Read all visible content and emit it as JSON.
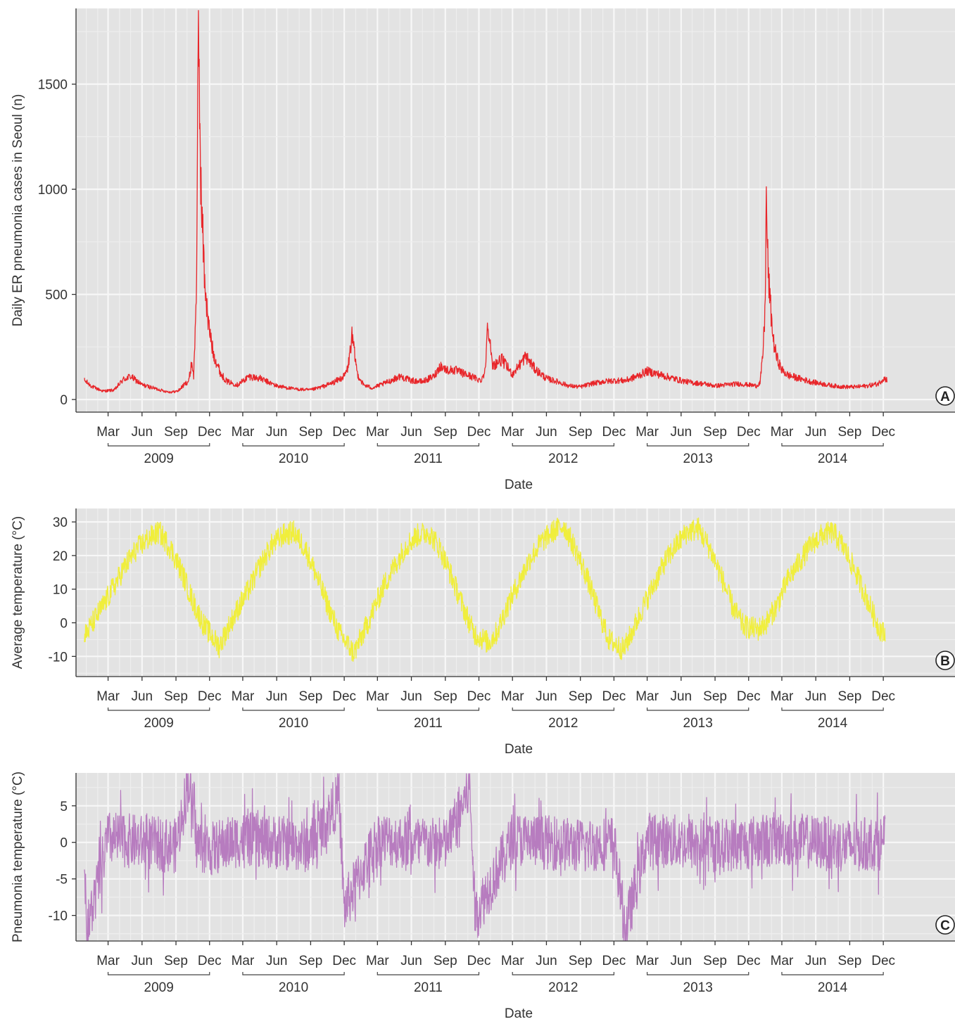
{
  "chart_data": [
    {
      "type": "line",
      "panel_label": "A",
      "title": "",
      "xlabel": "Date",
      "ylabel": "Daily ER pneumonia cases in Seoul (n)",
      "x_range": [
        "2009-01-01",
        "2015-01-01"
      ],
      "ylim": [
        -60,
        1860
      ],
      "y_ticks": [
        0,
        500,
        1000,
        1500
      ],
      "month_ticks": [
        "Mar",
        "Jun",
        "Sep",
        "Dec"
      ],
      "years": [
        "2009",
        "2010",
        "2011",
        "2012",
        "2013",
        "2014"
      ],
      "grid": true,
      "legend": "none",
      "line_color": "#e8262a",
      "series": [
        {
          "x": [
            "2009-01-10",
            "2009-02-01",
            "2009-03-01",
            "2009-04-01",
            "2009-04-25",
            "2009-05-15",
            "2009-06-15",
            "2009-07-15",
            "2009-08-15",
            "2009-09-01",
            "2009-09-20",
            "2009-10-10",
            "2009-10-20",
            "2009-10-28",
            "2009-11-02",
            "2009-11-06",
            "2009-11-10",
            "2009-11-15",
            "2009-11-22",
            "2009-12-01",
            "2009-12-10",
            "2009-12-25",
            "2010-01-15",
            "2010-02-01",
            "2010-03-01",
            "2010-04-01",
            "2010-05-01",
            "2010-06-15",
            "2010-08-01",
            "2010-09-15",
            "2010-10-15",
            "2010-11-15",
            "2010-12-15",
            "2010-12-25",
            "2011-01-05",
            "2011-01-20",
            "2011-02-05",
            "2011-03-01",
            "2011-04-01",
            "2011-05-15",
            "2011-06-15",
            "2011-07-15",
            "2011-08-15",
            "2011-09-01",
            "2011-09-20",
            "2011-10-10",
            "2011-11-01",
            "2011-12-01",
            "2011-12-20",
            "2012-01-01",
            "2012-01-08",
            "2012-01-20",
            "2012-02-15",
            "2012-03-15",
            "2012-04-01",
            "2012-04-20",
            "2012-05-15",
            "2012-06-15",
            "2012-07-15",
            "2012-08-15",
            "2012-09-15",
            "2012-10-15",
            "2012-11-15",
            "2012-12-15",
            "2013-01-15",
            "2013-02-15",
            "2013-03-15",
            "2013-04-15",
            "2013-05-15",
            "2013-06-15",
            "2013-07-15",
            "2013-08-15",
            "2013-09-15",
            "2013-10-15",
            "2013-11-15",
            "2013-12-15",
            "2014-01-05",
            "2014-01-15",
            "2014-01-22",
            "2014-01-28",
            "2014-02-01",
            "2014-02-06",
            "2014-02-12",
            "2014-02-20",
            "2014-03-01",
            "2014-03-15",
            "2014-04-01",
            "2014-05-01",
            "2014-06-01",
            "2014-07-01",
            "2014-08-01",
            "2014-09-01",
            "2014-10-01",
            "2014-11-01",
            "2014-12-01",
            "2014-12-15",
            "2014-12-25"
          ],
          "values": [
            90,
            60,
            40,
            45,
            95,
            110,
            70,
            55,
            40,
            35,
            40,
            75,
            90,
            180,
            110,
            320,
            600,
            1780,
            980,
            600,
            380,
            220,
            120,
            85,
            70,
            110,
            100,
            65,
            50,
            45,
            60,
            80,
            110,
            150,
            300,
            120,
            70,
            55,
            75,
            110,
            90,
            85,
            110,
            160,
            140,
            140,
            125,
            105,
            90,
            135,
            385,
            160,
            190,
            120,
            160,
            205,
            145,
            100,
            85,
            65,
            60,
            75,
            85,
            90,
            90,
            110,
            135,
            120,
            105,
            90,
            80,
            75,
            65,
            70,
            75,
            70,
            65,
            80,
            200,
            400,
            940,
            600,
            450,
            280,
            200,
            140,
            115,
            100,
            85,
            75,
            65,
            60,
            60,
            65,
            75,
            100,
            95
          ]
        }
      ]
    },
    {
      "type": "line",
      "panel_label": "B",
      "title": "",
      "xlabel": "Date",
      "ylabel": "Average temperature (°C)",
      "x_range": [
        "2009-01-01",
        "2015-01-01"
      ],
      "ylim": [
        -16,
        34
      ],
      "y_ticks": [
        -10,
        0,
        10,
        20,
        30
      ],
      "month_ticks": [
        "Mar",
        "Jun",
        "Sep",
        "Dec"
      ],
      "years": [
        "2009",
        "2010",
        "2011",
        "2012",
        "2013",
        "2014"
      ],
      "grid": true,
      "legend": "none",
      "line_color": "#f0ee3c",
      "series": [
        {
          "x": [
            "2009-01-10",
            "2009-02-01",
            "2009-03-01",
            "2009-04-01",
            "2009-05-01",
            "2009-06-01",
            "2009-07-01",
            "2009-08-01",
            "2009-09-01",
            "2009-10-01",
            "2009-11-01",
            "2009-12-01",
            "2010-01-10",
            "2010-02-01",
            "2010-03-01",
            "2010-04-01",
            "2010-05-01",
            "2010-06-01",
            "2010-07-01",
            "2010-08-01",
            "2010-09-01",
            "2010-10-01",
            "2010-11-01",
            "2010-12-01",
            "2011-01-10",
            "2011-02-01",
            "2011-03-01",
            "2011-04-01",
            "2011-05-01",
            "2011-06-01",
            "2011-07-01",
            "2011-08-01",
            "2011-09-01",
            "2011-10-01",
            "2011-11-01",
            "2011-12-01",
            "2012-01-10",
            "2012-02-01",
            "2012-03-01",
            "2012-04-01",
            "2012-05-01",
            "2012-06-01",
            "2012-07-01",
            "2012-08-01",
            "2012-09-01",
            "2012-10-01",
            "2012-11-01",
            "2012-12-01",
            "2013-01-10",
            "2013-02-01",
            "2013-03-01",
            "2013-04-01",
            "2013-05-01",
            "2013-06-01",
            "2013-07-01",
            "2013-08-01",
            "2013-09-01",
            "2013-10-01",
            "2013-11-01",
            "2013-12-01",
            "2014-01-10",
            "2014-02-01",
            "2014-03-01",
            "2014-04-01",
            "2014-05-01",
            "2014-06-01",
            "2014-07-01",
            "2014-08-01",
            "2014-09-01",
            "2014-10-01",
            "2014-11-01",
            "2014-12-01",
            "2014-12-20"
          ],
          "values": [
            -4,
            0,
            5,
            11,
            17,
            22,
            25,
            27,
            22,
            15,
            6,
            -1,
            -7,
            -2,
            4,
            10,
            17,
            23,
            26,
            27,
            22,
            14,
            5,
            -3,
            -9,
            -4,
            3,
            11,
            17,
            23,
            26,
            27,
            22,
            14,
            5,
            -3,
            -6,
            -3,
            5,
            12,
            19,
            24,
            27,
            29,
            22,
            14,
            4,
            -5,
            -8,
            -3,
            4,
            11,
            18,
            23,
            27,
            28,
            22,
            14,
            5,
            -1,
            -2,
            0,
            5,
            13,
            18,
            23,
            26,
            27,
            22,
            15,
            7,
            -1,
            -4
          ]
        }
      ]
    },
    {
      "type": "line",
      "panel_label": "C",
      "title": "",
      "xlabel": "Date",
      "ylabel": "Pneumonia temperature (°C)",
      "x_range": [
        "2009-01-01",
        "2015-01-01"
      ],
      "ylim": [
        -13.5,
        9.5
      ],
      "y_ticks": [
        -10,
        -5,
        0,
        5
      ],
      "month_ticks": [
        "Mar",
        "Jun",
        "Sep",
        "Dec"
      ],
      "years": [
        "2009",
        "2010",
        "2011",
        "2012",
        "2013",
        "2014"
      ],
      "grid": true,
      "legend": "none",
      "line_color": "#b77cbf",
      "series": [
        {
          "x": [
            "2009-01-10",
            "2009-01-16",
            "2009-03-15",
            "2009-06-15",
            "2009-09-15",
            "2009-10-20",
            "2009-11-10",
            "2009-12-15",
            "2010-03-15",
            "2010-06-15",
            "2010-09-15",
            "2010-12-01",
            "2010-12-15",
            "2011-03-15",
            "2011-06-15",
            "2011-09-15",
            "2011-11-20",
            "2011-12-05",
            "2012-03-15",
            "2012-06-15",
            "2012-09-15",
            "2012-12-15",
            "2013-01-15",
            "2013-03-15",
            "2013-06-15",
            "2013-09-15",
            "2013-12-15",
            "2014-03-15",
            "2014-06-15",
            "2014-09-15",
            "2014-12-20"
          ],
          "values": [
            0,
            -12.5,
            0.5,
            0,
            -0.5,
            8.5,
            0,
            -1,
            0.5,
            0,
            -0.5,
            6,
            -9,
            0.5,
            0,
            -0.5,
            7.5,
            -10,
            0.5,
            0,
            -0.5,
            0,
            -12,
            0.5,
            0,
            -0.5,
            0,
            0.5,
            0,
            -0.5,
            0
          ]
        }
      ]
    }
  ]
}
